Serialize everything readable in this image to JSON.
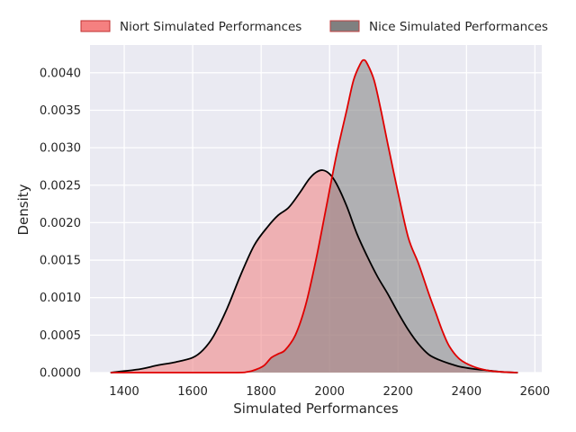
{
  "chart_data": {
    "type": "area",
    "xlabel": "Simulated Performances",
    "ylabel": "Density",
    "xlim": [
      1300,
      2620
    ],
    "ylim": [
      0,
      0.00437
    ],
    "x_ticks": [
      1400,
      1600,
      1800,
      2000,
      2200,
      2400,
      2600
    ],
    "y_ticks": [
      0.0,
      0.0005,
      0.001,
      0.0015,
      0.002,
      0.0025,
      0.003,
      0.0035,
      0.004
    ],
    "x_tick_labels": [
      "1400",
      "1600",
      "1800",
      "2000",
      "2200",
      "2400",
      "2600"
    ],
    "y_tick_labels": [
      "0.0000",
      "0.0005",
      "0.0010",
      "0.0015",
      "0.0020",
      "0.0025",
      "0.0030",
      "0.0035",
      "0.0040"
    ],
    "grid": true,
    "legend_position": "top, outside plot, horizontal",
    "series": [
      {
        "name": "Niort Simulated Performances",
        "fill": "#f08080",
        "fill_opacity": 0.55,
        "line": "#000000",
        "x": [
          1360,
          1400,
          1450,
          1500,
          1550,
          1600,
          1630,
          1660,
          1700,
          1740,
          1780,
          1820,
          1850,
          1880,
          1910,
          1940,
          1960,
          1980,
          2000,
          2020,
          2050,
          2080,
          2110,
          2140,
          2170,
          2200,
          2230,
          2260,
          2290,
          2320,
          2350,
          2380,
          2420,
          2460,
          2500,
          2550
        ],
        "y": [
          0.0,
          2e-05,
          5e-05,
          0.0001,
          0.00014,
          0.0002,
          0.0003,
          0.00048,
          0.00085,
          0.0013,
          0.0017,
          0.00195,
          0.0021,
          0.0022,
          0.00238,
          0.00258,
          0.00267,
          0.0027,
          0.00265,
          0.00252,
          0.00222,
          0.00185,
          0.00155,
          0.00128,
          0.00105,
          0.0008,
          0.00057,
          0.00038,
          0.00024,
          0.00017,
          0.00012,
          8e-05,
          5e-05,
          3e-05,
          1e-05,
          0.0
        ]
      },
      {
        "name": "Nice Simulated Performances",
        "fill": "#808080",
        "fill_opacity": 0.55,
        "line": "#e00000",
        "x": [
          1360,
          1700,
          1760,
          1790,
          1810,
          1830,
          1850,
          1870,
          1900,
          1930,
          1960,
          1990,
          2020,
          2050,
          2070,
          2090,
          2100,
          2110,
          2130,
          2150,
          2170,
          2200,
          2230,
          2260,
          2290,
          2310,
          2330,
          2350,
          2380,
          2420,
          2460,
          2500,
          2550
        ],
        "y": [
          0.0,
          0.0,
          1e-05,
          5e-05,
          0.0001,
          0.0002,
          0.00025,
          0.0003,
          0.0005,
          0.0009,
          0.0015,
          0.0022,
          0.0029,
          0.0035,
          0.0039,
          0.00412,
          0.00417,
          0.00412,
          0.0039,
          0.0035,
          0.00305,
          0.0024,
          0.0018,
          0.00145,
          0.00105,
          0.0008,
          0.00055,
          0.00035,
          0.00018,
          8e-05,
          3e-05,
          1e-05,
          0.0
        ]
      }
    ]
  }
}
